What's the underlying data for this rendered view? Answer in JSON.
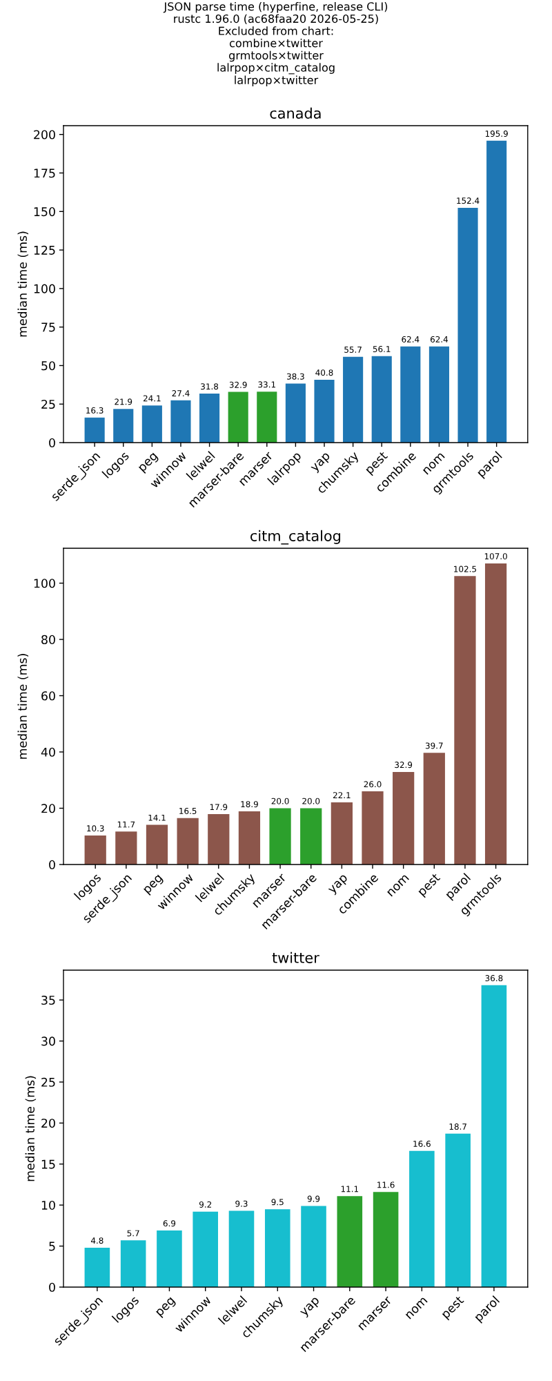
{
  "chart_data": [
    {
      "type": "bar",
      "title": "canada",
      "ylabel": "median time (ms)",
      "annotations": [
        "JSON parse time (hyperfine, release CLI)",
        "rustc 1.96.0 (ac68faa20 2026-05-25)",
        "Excluded from chart:",
        "combine×twitter",
        "grmtools×twitter",
        "lalrpop×citm_catalog",
        "lalrpop×twitter"
      ],
      "categories": [
        "serde_json",
        "logos",
        "peg",
        "winnow",
        "lelwel",
        "marser-bare",
        "marser",
        "lalrpop",
        "yap",
        "chumsky",
        "pest",
        "combine",
        "nom",
        "grmtools",
        "parol"
      ],
      "values": [
        16.3,
        21.9,
        24.1,
        27.4,
        31.8,
        32.9,
        33.1,
        38.3,
        40.8,
        55.7,
        56.1,
        62.4,
        62.4,
        152.4,
        195.9
      ],
      "colors": [
        "#1f77b4",
        "#1f77b4",
        "#1f77b4",
        "#1f77b4",
        "#1f77b4",
        "#2ca02c",
        "#2ca02c",
        "#1f77b4",
        "#1f77b4",
        "#1f77b4",
        "#1f77b4",
        "#1f77b4",
        "#1f77b4",
        "#1f77b4",
        "#1f77b4"
      ],
      "ylim": [
        0,
        205.7
      ],
      "yticks": [
        0,
        25,
        50,
        75,
        100,
        125,
        150,
        175,
        200
      ],
      "data_labels": true
    },
    {
      "type": "bar",
      "title": "citm_catalog",
      "ylabel": "median time (ms)",
      "categories": [
        "logos",
        "serde_json",
        "peg",
        "winnow",
        "lelwel",
        "chumsky",
        "marser",
        "marser-bare",
        "yap",
        "combine",
        "nom",
        "pest",
        "parol",
        "grmtools"
      ],
      "values": [
        10.3,
        11.7,
        14.1,
        16.5,
        17.9,
        18.9,
        20,
        20,
        22.1,
        26,
        32.9,
        39.7,
        102.5,
        107
      ],
      "value_labels": [
        "10.3",
        "11.7",
        "14.1",
        "16.5",
        "17.9",
        "18.9",
        "20.0",
        "20.0",
        "22.1",
        "26.0",
        "32.9",
        "39.7",
        "102.5",
        "107.0"
      ],
      "colors": [
        "#8c564b",
        "#8c564b",
        "#8c564b",
        "#8c564b",
        "#8c564b",
        "#8c564b",
        "#2ca02c",
        "#2ca02c",
        "#8c564b",
        "#8c564b",
        "#8c564b",
        "#8c564b",
        "#8c564b",
        "#8c564b"
      ],
      "ylim": [
        0,
        112.4
      ],
      "yticks": [
        0,
        20,
        40,
        60,
        80,
        100
      ]
    },
    {
      "type": "bar",
      "title": "twitter",
      "ylabel": "median time (ms)",
      "categories": [
        "serde_json",
        "logos",
        "peg",
        "winnow",
        "lelwel",
        "chumsky",
        "yap",
        "marser-bare",
        "marser",
        "nom",
        "pest",
        "parol"
      ],
      "values": [
        4.8,
        5.7,
        6.9,
        9.2,
        9.3,
        9.5,
        9.9,
        11.1,
        11.6,
        16.6,
        18.7,
        36.8
      ],
      "colors": [
        "#17becf",
        "#17becf",
        "#17becf",
        "#17becf",
        "#17becf",
        "#17becf",
        "#17becf",
        "#2ca02c",
        "#2ca02c",
        "#17becf",
        "#17becf",
        "#17becf"
      ],
      "ylim": [
        0,
        38.64
      ],
      "yticks": [
        0,
        5,
        10,
        15,
        20,
        25,
        30,
        35
      ],
      "data_labels": true
    }
  ]
}
